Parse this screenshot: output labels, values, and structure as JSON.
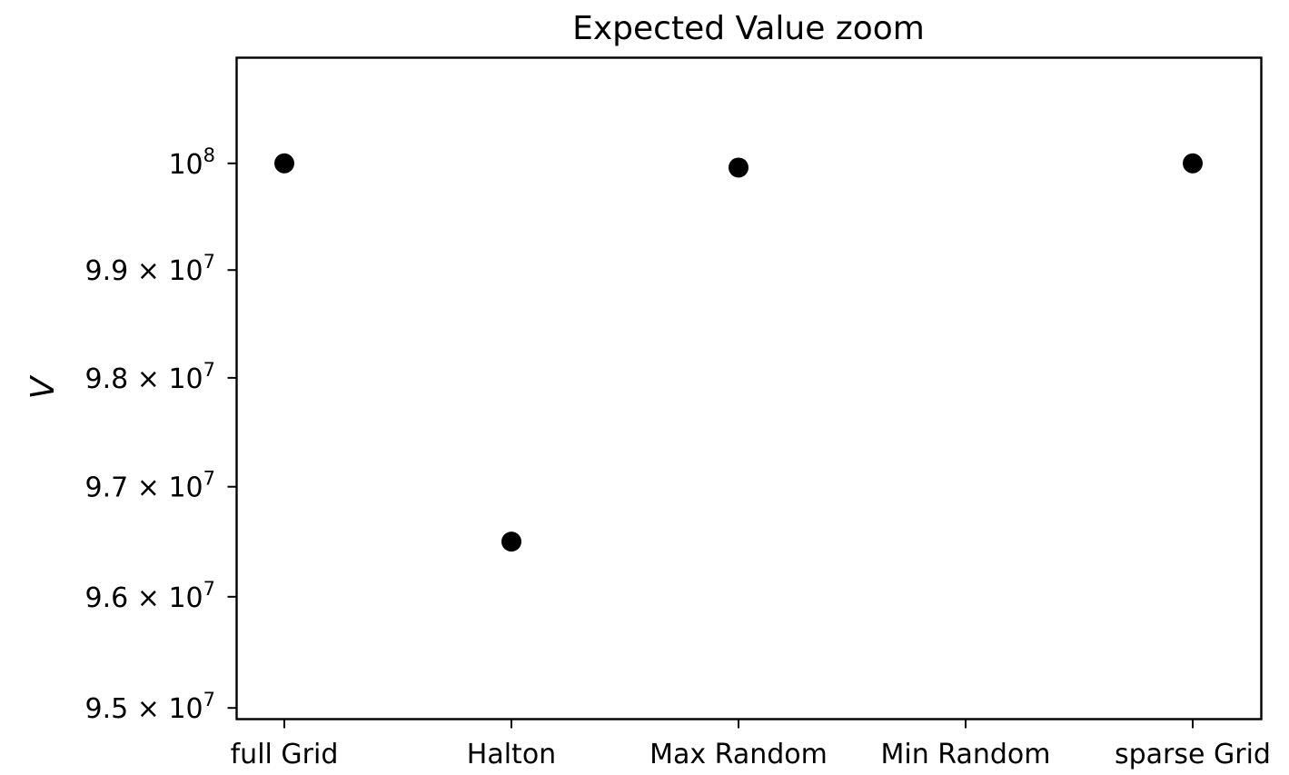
{
  "chart_data": {
    "type": "scatter",
    "title": "Expected Value zoom",
    "xlabel": "",
    "ylabel": "V",
    "categories": [
      "full Grid",
      "Halton",
      "Max Random",
      "Min Random",
      "sparse Grid"
    ],
    "values": [
      100000000,
      96500000,
      99960000,
      null,
      100000000
    ],
    "ylim": [
      94900000,
      101000000
    ],
    "y_scale": "log",
    "y_ticks": [
      {
        "value": 95000000,
        "mantissa": "9.5",
        "exp": "7"
      },
      {
        "value": 96000000,
        "mantissa": "9.6",
        "exp": "7"
      },
      {
        "value": 97000000,
        "mantissa": "9.7",
        "exp": "7"
      },
      {
        "value": 98000000,
        "mantissa": "9.8",
        "exp": "7"
      },
      {
        "value": 99000000,
        "mantissa": "9.9",
        "exp": "7"
      },
      {
        "value": 100000000,
        "mantissa": "",
        "exp": "8"
      }
    ],
    "marker_color": "#000000",
    "grid": false
  }
}
